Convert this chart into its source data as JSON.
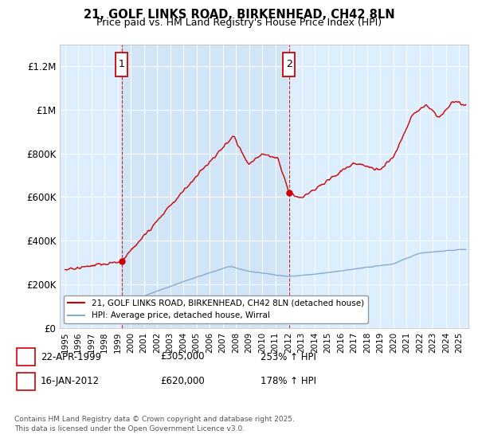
{
  "title_line1": "21, GOLF LINKS ROAD, BIRKENHEAD, CH42 8LN",
  "title_line2": "Price paid vs. HM Land Registry's House Price Index (HPI)",
  "legend_line1": "21, GOLF LINKS ROAD, BIRKENHEAD, CH42 8LN (detached house)",
  "legend_line2": "HPI: Average price, detached house, Wirral",
  "footnote": "Contains HM Land Registry data © Crown copyright and database right 2025.\nThis data is licensed under the Open Government Licence v3.0.",
  "sale1_label": "1",
  "sale1_date": "22-APR-1999",
  "sale1_price": "£305,000",
  "sale1_hpi": "253% ↑ HPI",
  "sale2_label": "2",
  "sale2_date": "16-JAN-2012",
  "sale2_price": "£620,000",
  "sale2_hpi": "178% ↑ HPI",
  "red_color": "#cc0000",
  "blue_color": "#88aacc",
  "bg_color": "#ddeeff",
  "shade_color": "#c8ddf0",
  "marker_border_color": "#cc0000",
  "ylim_min": 0,
  "ylim_max": 1300000,
  "yticks": [
    0,
    200000,
    400000,
    600000,
    800000,
    1000000,
    1200000
  ],
  "ytick_labels": [
    "£0",
    "£200K",
    "£400K",
    "£600K",
    "£800K",
    "£1M",
    "£1.2M"
  ],
  "xlim_start": 1994.6,
  "xlim_end": 2025.7,
  "sale1_x": 1999.3,
  "sale1_y": 305000,
  "sale2_x": 2012.05,
  "sale2_y": 620000,
  "xtick_years": [
    1995,
    1996,
    1997,
    1998,
    1999,
    2000,
    2001,
    2002,
    2003,
    2004,
    2005,
    2006,
    2007,
    2008,
    2009,
    2010,
    2011,
    2012,
    2013,
    2014,
    2015,
    2016,
    2017,
    2018,
    2019,
    2020,
    2021,
    2022,
    2023,
    2024,
    2025
  ]
}
